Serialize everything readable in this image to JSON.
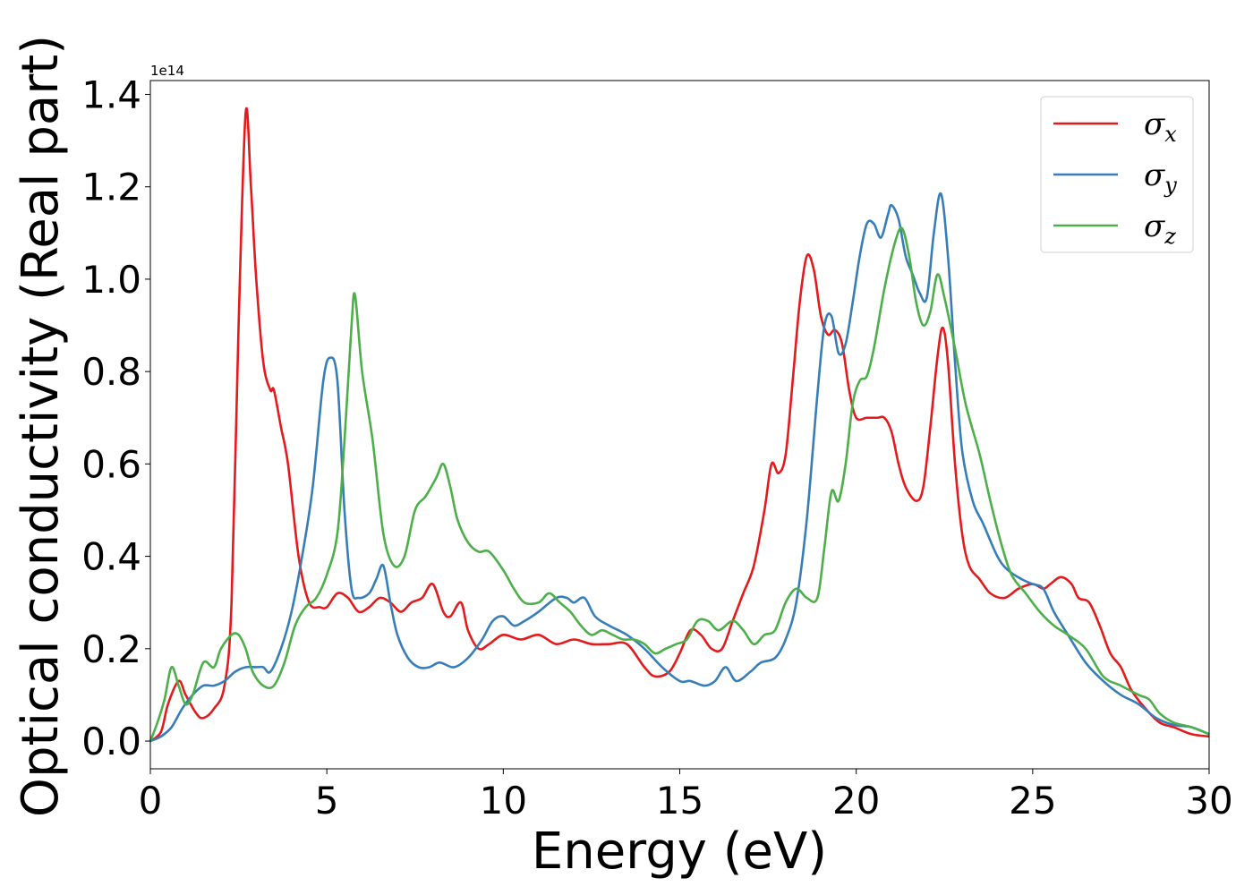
{
  "chart_data": {
    "type": "line",
    "xlabel": "Energy (eV)",
    "ylabel": "Optical conductivity (Real part)",
    "y_offset_text": "1e14",
    "xlim": [
      0,
      30
    ],
    "ylim": [
      -0.06,
      1.43
    ],
    "y_scale_factor": 100000000000000.0,
    "xticks": [
      0,
      5,
      10,
      15,
      20,
      25,
      30
    ],
    "xtick_labels": [
      "0",
      "5",
      "10",
      "15",
      "20",
      "25",
      "30"
    ],
    "yticks": [
      0.0,
      0.2,
      0.4,
      0.6,
      0.8,
      1.0,
      1.2,
      1.4
    ],
    "ytick_labels": [
      "0.0",
      "0.2",
      "0.4",
      "0.6",
      "0.8",
      "1.0",
      "1.2",
      "1.4"
    ],
    "grid": false,
    "legend_position": "top-right",
    "series": [
      {
        "name": "σx",
        "legend_symbol": "σ",
        "legend_sub": "x",
        "color": "#e41a1c",
        "points": [
          [
            0,
            0
          ],
          [
            0.3,
            0.02
          ],
          [
            0.5,
            0.08
          ],
          [
            0.8,
            0.13
          ],
          [
            1.0,
            0.1
          ],
          [
            1.3,
            0.06
          ],
          [
            1.5,
            0.05
          ],
          [
            1.8,
            0.07
          ],
          [
            2.1,
            0.12
          ],
          [
            2.3,
            0.3
          ],
          [
            2.5,
            0.9
          ],
          [
            2.7,
            1.36
          ],
          [
            2.85,
            1.2
          ],
          [
            3.0,
            1.0
          ],
          [
            3.2,
            0.82
          ],
          [
            3.4,
            0.76
          ],
          [
            3.5,
            0.76
          ],
          [
            3.7,
            0.68
          ],
          [
            3.9,
            0.6
          ],
          [
            4.2,
            0.4
          ],
          [
            4.5,
            0.3
          ],
          [
            4.8,
            0.29
          ],
          [
            5.0,
            0.29
          ],
          [
            5.3,
            0.32
          ],
          [
            5.6,
            0.31
          ],
          [
            5.9,
            0.28
          ],
          [
            6.2,
            0.29
          ],
          [
            6.5,
            0.31
          ],
          [
            6.8,
            0.3
          ],
          [
            7.1,
            0.28
          ],
          [
            7.4,
            0.3
          ],
          [
            7.7,
            0.31
          ],
          [
            8.0,
            0.34
          ],
          [
            8.3,
            0.28
          ],
          [
            8.5,
            0.27
          ],
          [
            8.8,
            0.3
          ],
          [
            9.0,
            0.24
          ],
          [
            9.3,
            0.2
          ],
          [
            9.6,
            0.21
          ],
          [
            10.0,
            0.23
          ],
          [
            10.5,
            0.22
          ],
          [
            11.0,
            0.23
          ],
          [
            11.5,
            0.21
          ],
          [
            12.0,
            0.22
          ],
          [
            12.5,
            0.21
          ],
          [
            13.0,
            0.21
          ],
          [
            13.5,
            0.21
          ],
          [
            14.0,
            0.16
          ],
          [
            14.3,
            0.14
          ],
          [
            14.7,
            0.15
          ],
          [
            15.0,
            0.19
          ],
          [
            15.3,
            0.24
          ],
          [
            15.6,
            0.23
          ],
          [
            15.9,
            0.2
          ],
          [
            16.2,
            0.2
          ],
          [
            16.5,
            0.26
          ],
          [
            16.8,
            0.32
          ],
          [
            17.1,
            0.38
          ],
          [
            17.4,
            0.5
          ],
          [
            17.6,
            0.6
          ],
          [
            17.8,
            0.58
          ],
          [
            18.0,
            0.62
          ],
          [
            18.2,
            0.78
          ],
          [
            18.4,
            0.95
          ],
          [
            18.6,
            1.05
          ],
          [
            18.8,
            1.02
          ],
          [
            19.0,
            0.92
          ],
          [
            19.2,
            0.88
          ],
          [
            19.4,
            0.89
          ],
          [
            19.6,
            0.86
          ],
          [
            19.8,
            0.76
          ],
          [
            20.0,
            0.7
          ],
          [
            20.3,
            0.7
          ],
          [
            20.6,
            0.7
          ],
          [
            20.8,
            0.7
          ],
          [
            21.0,
            0.67
          ],
          [
            21.2,
            0.6
          ],
          [
            21.4,
            0.55
          ],
          [
            21.7,
            0.52
          ],
          [
            21.9,
            0.55
          ],
          [
            22.1,
            0.68
          ],
          [
            22.3,
            0.83
          ],
          [
            22.45,
            0.895
          ],
          [
            22.6,
            0.82
          ],
          [
            22.8,
            0.6
          ],
          [
            23.0,
            0.45
          ],
          [
            23.2,
            0.38
          ],
          [
            23.5,
            0.35
          ],
          [
            23.8,
            0.32
          ],
          [
            24.2,
            0.31
          ],
          [
            24.6,
            0.33
          ],
          [
            25.0,
            0.34
          ],
          [
            25.3,
            0.33
          ],
          [
            25.5,
            0.34
          ],
          [
            25.8,
            0.355
          ],
          [
            26.1,
            0.34
          ],
          [
            26.3,
            0.31
          ],
          [
            26.6,
            0.3
          ],
          [
            26.9,
            0.25
          ],
          [
            27.2,
            0.19
          ],
          [
            27.5,
            0.16
          ],
          [
            27.8,
            0.11
          ],
          [
            28.2,
            0.07
          ],
          [
            28.6,
            0.04
          ],
          [
            29.0,
            0.03
          ],
          [
            29.5,
            0.015
          ],
          [
            30,
            0.01
          ]
        ]
      },
      {
        "name": "σy",
        "legend_symbol": "σ",
        "legend_sub": "y",
        "color": "#377eb8",
        "points": [
          [
            0,
            0
          ],
          [
            0.3,
            0.01
          ],
          [
            0.6,
            0.03
          ],
          [
            0.9,
            0.07
          ],
          [
            1.2,
            0.1
          ],
          [
            1.5,
            0.12
          ],
          [
            1.8,
            0.12
          ],
          [
            2.1,
            0.13
          ],
          [
            2.4,
            0.15
          ],
          [
            2.7,
            0.16
          ],
          [
            3.0,
            0.16
          ],
          [
            3.2,
            0.16
          ],
          [
            3.4,
            0.15
          ],
          [
            3.7,
            0.2
          ],
          [
            4.0,
            0.28
          ],
          [
            4.3,
            0.4
          ],
          [
            4.6,
            0.55
          ],
          [
            4.9,
            0.78
          ],
          [
            5.1,
            0.83
          ],
          [
            5.3,
            0.78
          ],
          [
            5.5,
            0.5
          ],
          [
            5.7,
            0.33
          ],
          [
            5.9,
            0.31
          ],
          [
            6.2,
            0.32
          ],
          [
            6.4,
            0.35
          ],
          [
            6.6,
            0.38
          ],
          [
            6.8,
            0.3
          ],
          [
            7.0,
            0.23
          ],
          [
            7.3,
            0.18
          ],
          [
            7.6,
            0.16
          ],
          [
            7.9,
            0.16
          ],
          [
            8.2,
            0.17
          ],
          [
            8.6,
            0.16
          ],
          [
            9.0,
            0.18
          ],
          [
            9.4,
            0.22
          ],
          [
            9.7,
            0.26
          ],
          [
            10.0,
            0.27
          ],
          [
            10.3,
            0.25
          ],
          [
            10.6,
            0.26
          ],
          [
            11.0,
            0.28
          ],
          [
            11.5,
            0.31
          ],
          [
            11.8,
            0.31
          ],
          [
            12.0,
            0.3
          ],
          [
            12.3,
            0.31
          ],
          [
            12.6,
            0.27
          ],
          [
            13.0,
            0.25
          ],
          [
            13.5,
            0.23
          ],
          [
            14.0,
            0.2
          ],
          [
            14.5,
            0.16
          ],
          [
            15.0,
            0.13
          ],
          [
            15.3,
            0.13
          ],
          [
            15.7,
            0.12
          ],
          [
            16.0,
            0.13
          ],
          [
            16.3,
            0.16
          ],
          [
            16.6,
            0.13
          ],
          [
            17.0,
            0.15
          ],
          [
            17.3,
            0.17
          ],
          [
            17.7,
            0.18
          ],
          [
            18.0,
            0.22
          ],
          [
            18.3,
            0.3
          ],
          [
            18.6,
            0.48
          ],
          [
            18.9,
            0.75
          ],
          [
            19.1,
            0.9
          ],
          [
            19.3,
            0.92
          ],
          [
            19.5,
            0.84
          ],
          [
            19.7,
            0.86
          ],
          [
            19.9,
            0.95
          ],
          [
            20.1,
            1.05
          ],
          [
            20.3,
            1.12
          ],
          [
            20.5,
            1.12
          ],
          [
            20.7,
            1.09
          ],
          [
            20.9,
            1.14
          ],
          [
            21.0,
            1.16
          ],
          [
            21.2,
            1.13
          ],
          [
            21.4,
            1.05
          ],
          [
            21.6,
            1.01
          ],
          [
            21.8,
            0.97
          ],
          [
            22.0,
            0.96
          ],
          [
            22.2,
            1.1
          ],
          [
            22.4,
            1.185
          ],
          [
            22.6,
            1.05
          ],
          [
            22.8,
            0.82
          ],
          [
            23.0,
            0.63
          ],
          [
            23.3,
            0.52
          ],
          [
            23.6,
            0.47
          ],
          [
            24.0,
            0.4
          ],
          [
            24.3,
            0.37
          ],
          [
            24.7,
            0.35
          ],
          [
            25.0,
            0.34
          ],
          [
            25.3,
            0.33
          ],
          [
            25.6,
            0.28
          ],
          [
            26.0,
            0.23
          ],
          [
            26.5,
            0.17
          ],
          [
            27.0,
            0.13
          ],
          [
            27.5,
            0.1
          ],
          [
            28.0,
            0.08
          ],
          [
            28.5,
            0.05
          ],
          [
            29.0,
            0.035
          ],
          [
            29.5,
            0.03
          ],
          [
            30,
            0.015
          ]
        ]
      },
      {
        "name": "σz",
        "legend_symbol": "σ",
        "legend_sub": "z",
        "color": "#4daf4a",
        "points": [
          [
            0,
            0
          ],
          [
            0.2,
            0.04
          ],
          [
            0.4,
            0.09
          ],
          [
            0.6,
            0.16
          ],
          [
            0.8,
            0.12
          ],
          [
            1.0,
            0.08
          ],
          [
            1.2,
            0.1
          ],
          [
            1.5,
            0.17
          ],
          [
            1.8,
            0.16
          ],
          [
            2.0,
            0.2
          ],
          [
            2.3,
            0.23
          ],
          [
            2.5,
            0.23
          ],
          [
            2.7,
            0.2
          ],
          [
            2.9,
            0.15
          ],
          [
            3.2,
            0.12
          ],
          [
            3.5,
            0.12
          ],
          [
            3.8,
            0.17
          ],
          [
            4.1,
            0.25
          ],
          [
            4.4,
            0.29
          ],
          [
            4.7,
            0.31
          ],
          [
            5.0,
            0.36
          ],
          [
            5.3,
            0.45
          ],
          [
            5.5,
            0.65
          ],
          [
            5.7,
            0.9
          ],
          [
            5.8,
            0.965
          ],
          [
            6.0,
            0.8
          ],
          [
            6.3,
            0.65
          ],
          [
            6.6,
            0.45
          ],
          [
            6.9,
            0.38
          ],
          [
            7.2,
            0.4
          ],
          [
            7.5,
            0.5
          ],
          [
            7.8,
            0.53
          ],
          [
            8.1,
            0.57
          ],
          [
            8.3,
            0.6
          ],
          [
            8.5,
            0.55
          ],
          [
            8.7,
            0.48
          ],
          [
            9.0,
            0.43
          ],
          [
            9.3,
            0.41
          ],
          [
            9.6,
            0.41
          ],
          [
            10.0,
            0.37
          ],
          [
            10.3,
            0.33
          ],
          [
            10.6,
            0.3
          ],
          [
            11.0,
            0.3
          ],
          [
            11.3,
            0.32
          ],
          [
            11.6,
            0.3
          ],
          [
            11.9,
            0.28
          ],
          [
            12.2,
            0.25
          ],
          [
            12.5,
            0.23
          ],
          [
            12.8,
            0.24
          ],
          [
            13.1,
            0.23
          ],
          [
            13.4,
            0.22
          ],
          [
            13.7,
            0.22
          ],
          [
            14.0,
            0.21
          ],
          [
            14.3,
            0.19
          ],
          [
            14.6,
            0.2
          ],
          [
            14.9,
            0.21
          ],
          [
            15.2,
            0.22
          ],
          [
            15.5,
            0.26
          ],
          [
            15.8,
            0.26
          ],
          [
            16.1,
            0.24
          ],
          [
            16.5,
            0.26
          ],
          [
            16.8,
            0.24
          ],
          [
            17.1,
            0.21
          ],
          [
            17.4,
            0.23
          ],
          [
            17.7,
            0.24
          ],
          [
            18.0,
            0.3
          ],
          [
            18.3,
            0.33
          ],
          [
            18.6,
            0.31
          ],
          [
            18.9,
            0.31
          ],
          [
            19.1,
            0.42
          ],
          [
            19.3,
            0.54
          ],
          [
            19.5,
            0.52
          ],
          [
            19.7,
            0.6
          ],
          [
            19.9,
            0.73
          ],
          [
            20.1,
            0.78
          ],
          [
            20.3,
            0.79
          ],
          [
            20.5,
            0.85
          ],
          [
            20.8,
            0.98
          ],
          [
            21.1,
            1.08
          ],
          [
            21.3,
            1.11
          ],
          [
            21.5,
            1.05
          ],
          [
            21.7,
            0.95
          ],
          [
            21.9,
            0.9
          ],
          [
            22.1,
            0.93
          ],
          [
            22.3,
            1.01
          ],
          [
            22.5,
            0.96
          ],
          [
            22.8,
            0.85
          ],
          [
            23.1,
            0.73
          ],
          [
            23.5,
            0.62
          ],
          [
            23.8,
            0.52
          ],
          [
            24.1,
            0.43
          ],
          [
            24.4,
            0.36
          ],
          [
            24.8,
            0.32
          ],
          [
            25.2,
            0.28
          ],
          [
            25.6,
            0.25
          ],
          [
            26.0,
            0.23
          ],
          [
            26.5,
            0.2
          ],
          [
            27.0,
            0.14
          ],
          [
            27.5,
            0.12
          ],
          [
            28.0,
            0.1
          ],
          [
            28.3,
            0.09
          ],
          [
            28.6,
            0.06
          ],
          [
            29.0,
            0.04
          ],
          [
            29.5,
            0.03
          ],
          [
            30,
            0.015
          ]
        ]
      }
    ]
  }
}
